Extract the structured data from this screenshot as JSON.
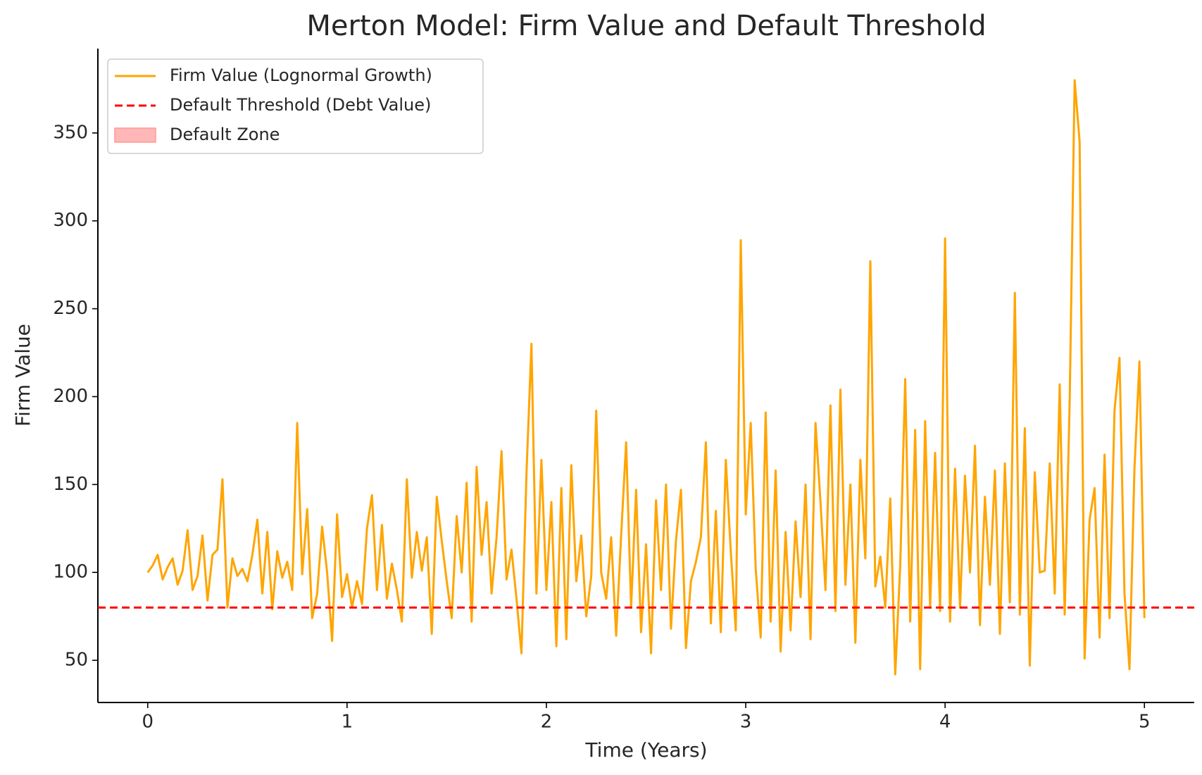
{
  "chart_data": {
    "type": "line",
    "title": "Merton Model: Firm Value and Default Threshold",
    "x_label": "Time (Years)",
    "y_label": "Firm Value",
    "x": [
      0,
      0.025,
      0.05,
      0.075,
      0.1,
      0.125,
      0.15,
      0.175,
      0.2,
      0.225,
      0.25,
      0.275,
      0.3,
      0.325,
      0.35,
      0.375,
      0.4,
      0.425,
      0.45,
      0.475,
      0.5,
      0.525,
      0.55,
      0.575,
      0.6,
      0.625,
      0.65,
      0.675,
      0.7,
      0.725,
      0.75,
      0.775,
      0.8,
      0.825,
      0.85,
      0.875,
      0.9,
      0.925,
      0.95,
      0.975,
      1,
      1.025,
      1.05,
      1.075,
      1.1,
      1.125,
      1.15,
      1.175,
      1.2,
      1.225,
      1.25,
      1.275,
      1.3,
      1.325,
      1.35,
      1.375,
      1.4,
      1.425,
      1.45,
      1.475,
      1.5,
      1.525,
      1.55,
      1.575,
      1.6,
      1.625,
      1.65,
      1.675,
      1.7,
      1.725,
      1.75,
      1.775,
      1.8,
      1.825,
      1.85,
      1.875,
      1.9,
      1.925,
      1.95,
      1.975,
      2,
      2.025,
      2.05,
      2.075,
      2.1,
      2.125,
      2.15,
      2.175,
      2.2,
      2.225,
      2.25,
      2.275,
      2.3,
      2.325,
      2.35,
      2.375,
      2.4,
      2.425,
      2.45,
      2.475,
      2.5,
      2.525,
      2.55,
      2.575,
      2.6,
      2.625,
      2.65,
      2.675,
      2.7,
      2.725,
      2.75,
      2.775,
      2.8,
      2.825,
      2.85,
      2.875,
      2.9,
      2.925,
      2.95,
      2.975,
      3,
      3.025,
      3.05,
      3.075,
      3.1,
      3.125,
      3.15,
      3.175,
      3.2,
      3.225,
      3.25,
      3.275,
      3.3,
      3.325,
      3.35,
      3.375,
      3.4,
      3.425,
      3.45,
      3.475,
      3.5,
      3.525,
      3.55,
      3.575,
      3.6,
      3.625,
      3.65,
      3.675,
      3.7,
      3.725,
      3.75,
      3.775,
      3.8,
      3.825,
      3.85,
      3.875,
      3.9,
      3.925,
      3.95,
      3.975,
      4,
      4.025,
      4.05,
      4.075,
      4.1,
      4.125,
      4.15,
      4.175,
      4.2,
      4.225,
      4.25,
      4.275,
      4.3,
      4.325,
      4.35,
      4.375,
      4.4,
      4.425,
      4.45,
      4.475,
      4.5,
      4.525,
      4.55,
      4.575,
      4.6,
      4.625,
      4.65,
      4.675,
      4.7,
      4.725,
      4.75,
      4.775,
      4.8,
      4.825,
      4.85,
      4.875,
      4.9,
      4.925,
      4.95,
      4.975,
      5
    ],
    "series": [
      {
        "name": "Firm Value (Lognormal Growth)",
        "color": "#ffa500",
        "values": [
          100,
          104,
          110,
          96,
          103,
          108,
          93,
          101,
          124,
          90,
          98,
          121,
          84,
          110,
          113,
          153,
          80,
          108,
          98,
          102,
          95,
          110,
          130,
          88,
          123,
          79,
          112,
          97,
          106,
          90,
          185,
          99,
          136,
          74,
          88,
          126,
          100,
          61,
          133,
          86,
          99,
          80,
          95,
          82,
          125,
          144,
          90,
          127,
          85,
          105,
          90,
          72,
          153,
          97,
          123,
          101,
          120,
          65,
          143,
          118,
          95,
          74,
          132,
          100,
          151,
          72,
          160,
          110,
          140,
          88,
          120,
          169,
          96,
          113,
          85,
          54,
          156,
          230,
          88,
          164,
          90,
          140,
          58,
          148,
          62,
          161,
          95,
          121,
          75,
          98,
          192,
          100,
          85,
          120,
          64,
          121,
          174,
          80,
          147,
          66,
          116,
          54,
          141,
          90,
          150,
          68,
          118,
          147,
          57,
          95,
          106,
          120,
          174,
          71,
          135,
          66,
          164,
          112,
          67,
          289,
          133,
          185,
          102,
          63,
          191,
          72,
          158,
          55,
          123,
          67,
          129,
          86,
          150,
          62,
          185,
          140,
          90,
          195,
          78,
          204,
          93,
          150,
          60,
          164,
          108,
          277,
          92,
          109,
          80,
          142,
          42,
          104,
          210,
          72,
          181,
          45,
          186,
          80,
          168,
          78,
          290,
          72,
          159,
          80,
          155,
          100,
          172,
          70,
          143,
          93,
          158,
          65,
          162,
          83,
          259,
          76,
          182,
          47,
          157,
          100,
          101,
          162,
          88,
          207,
          76,
          197,
          380,
          345,
          51,
          130,
          148,
          63,
          167,
          74,
          192,
          222,
          88,
          45,
          159,
          220,
          74
        ]
      }
    ],
    "threshold": {
      "name": "Default Threshold (Debt Value)",
      "color": "#ff0000",
      "value": 80
    },
    "zone": {
      "name": "Default Zone",
      "color": "#ff9999"
    },
    "xlim": [
      -0.25,
      5.25
    ],
    "ylim": [
      26,
      398
    ],
    "xticks": [
      0,
      1,
      2,
      3,
      4,
      5
    ],
    "yticks": [
      50,
      100,
      150,
      200,
      250,
      300,
      350
    ],
    "legend": "upper left"
  }
}
